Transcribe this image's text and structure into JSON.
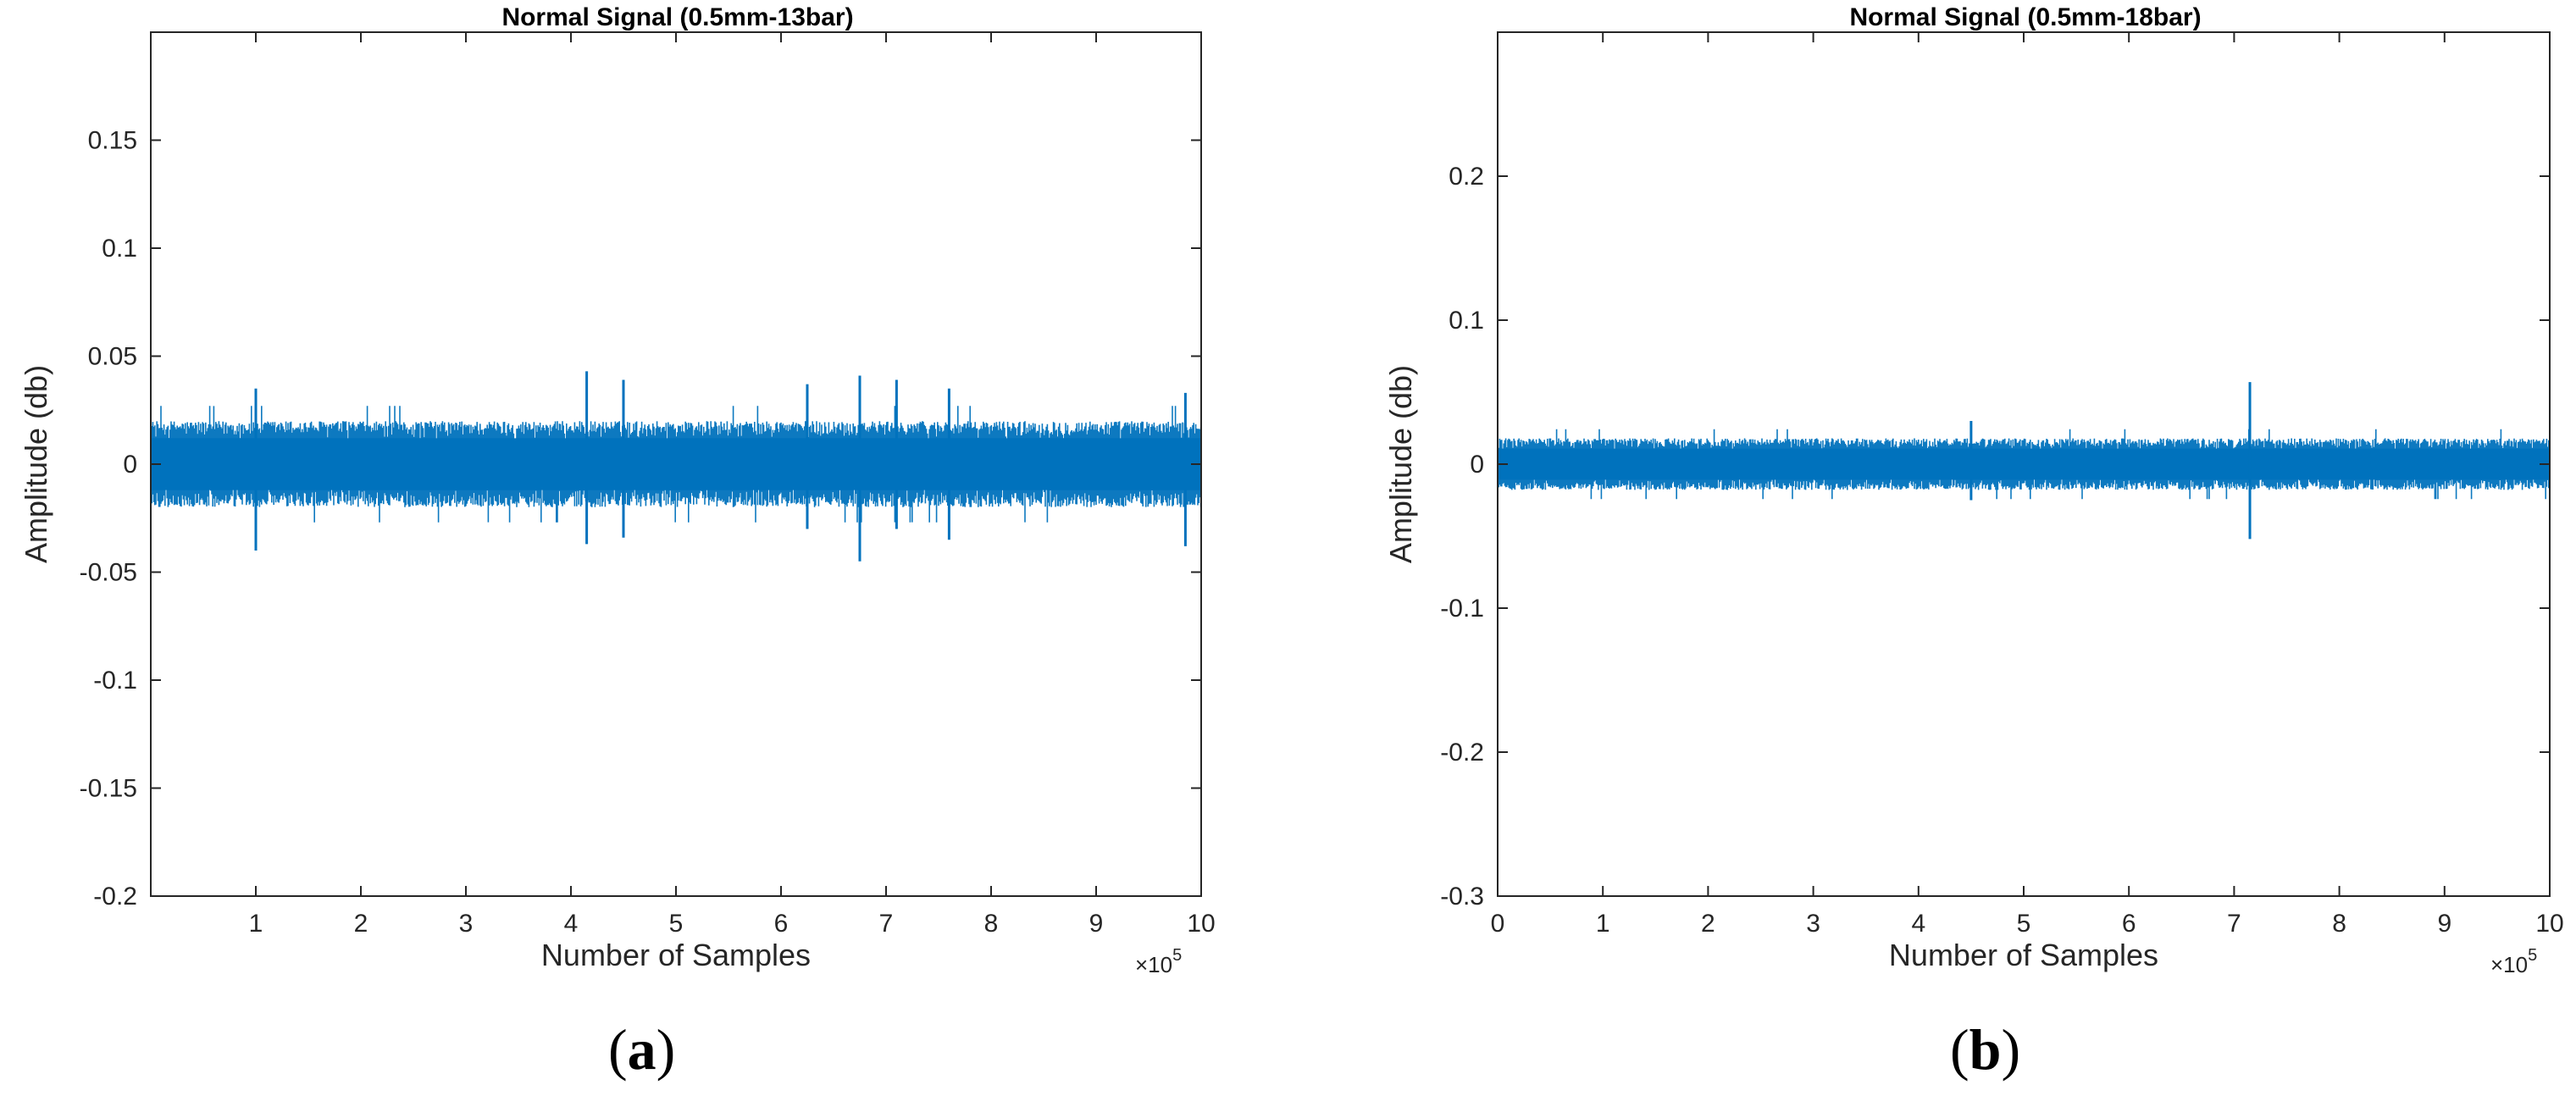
{
  "chart_data": [
    {
      "type": "line",
      "panel_label": "a",
      "title": "Normal Signal (0.5mm-13bar)",
      "xlabel": "Number of Samples",
      "ylabel": "Amplitude (db)",
      "x_multiplier": "×10",
      "x_multiplier_exp": "5",
      "xlim": [
        0,
        10
      ],
      "ylim": [
        -0.2,
        0.2
      ],
      "xticks": [
        1,
        2,
        3,
        4,
        5,
        6,
        7,
        8,
        9,
        10
      ],
      "xtick_labels": [
        "1",
        "2",
        "3",
        "4",
        "5",
        "6",
        "7",
        "8",
        "9",
        "10"
      ],
      "yticks": [
        -0.2,
        -0.15,
        -0.1,
        -0.05,
        0,
        0.05,
        0.1,
        0.15
      ],
      "ytick_labels": [
        "-0.2",
        "-0.15",
        "-0.1",
        "-0.05",
        "0",
        "0.05",
        "0.1",
        "0.15"
      ],
      "grid": false,
      "series_color": "#0072BD",
      "noise_band": [
        -0.02,
        0.02
      ],
      "spikes": [
        {
          "x": 1.0,
          "high": 0.035,
          "low": -0.04
        },
        {
          "x": 4.15,
          "high": 0.043,
          "low": -0.037
        },
        {
          "x": 4.5,
          "high": 0.039,
          "low": -0.034
        },
        {
          "x": 6.25,
          "high": 0.037,
          "low": -0.03
        },
        {
          "x": 6.75,
          "high": 0.041,
          "low": -0.045
        },
        {
          "x": 7.1,
          "high": 0.039,
          "low": -0.03
        },
        {
          "x": 7.6,
          "high": 0.035,
          "low": -0.035
        },
        {
          "x": 9.85,
          "high": 0.033,
          "low": -0.038
        }
      ]
    },
    {
      "type": "line",
      "panel_label": "b",
      "title": "Normal Signal (0.5mm-18bar)",
      "xlabel": "Number of Samples",
      "ylabel": "Amplitude (db)",
      "x_multiplier": "×10",
      "x_multiplier_exp": "5",
      "xlim": [
        0,
        10
      ],
      "ylim": [
        -0.3,
        0.3
      ],
      "xticks": [
        0,
        1,
        2,
        3,
        4,
        5,
        6,
        7,
        8,
        9,
        10
      ],
      "xtick_labels": [
        "0",
        "1",
        "2",
        "3",
        "4",
        "5",
        "6",
        "7",
        "8",
        "9",
        "10"
      ],
      "yticks": [
        -0.3,
        -0.2,
        -0.1,
        0,
        0.1,
        0.2
      ],
      "ytick_labels": [
        "-0.3",
        "-0.2",
        "-0.1",
        "0",
        "0.1",
        "0.2"
      ],
      "grid": false,
      "series_color": "#0072BD",
      "noise_band": [
        -0.018,
        0.018
      ],
      "spikes": [
        {
          "x": 7.15,
          "high": 0.057,
          "low": -0.052
        },
        {
          "x": 4.5,
          "high": 0.03,
          "low": -0.025
        }
      ]
    }
  ]
}
